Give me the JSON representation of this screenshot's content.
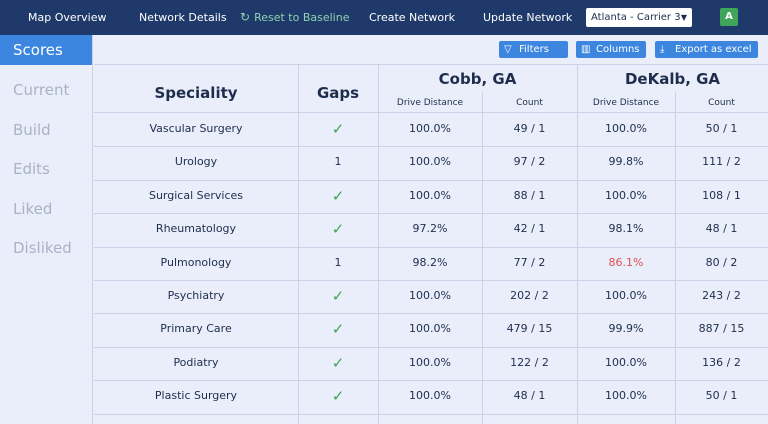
{
  "nav": {
    "items": [
      "Map Overview",
      "Network Details",
      "Reset to Baseline",
      "Create Network",
      "Update Network"
    ],
    "carrier_select": "Atlanta - Carrier 3",
    "avatar": "A"
  },
  "sidebar": {
    "items": [
      "Scores",
      "Current",
      "Build",
      "Edits",
      "Liked",
      "Disliked"
    ],
    "active": "Scores"
  },
  "toolbar": {
    "filters": "Filters",
    "columns": "Columns",
    "export": "Export as excel"
  },
  "table": {
    "headers": {
      "speciality": "Speciality",
      "gaps": "Gaps",
      "regions": [
        "Cobb, GA",
        "DeKalb, GA"
      ],
      "subcols": [
        "Drive Distance",
        "Count"
      ]
    },
    "rows": [
      {
        "speciality": "Vascular Surgery",
        "gaps": "",
        "gap_check": true,
        "cobb_drive": "100.0%",
        "cobb_count": "49 / 1",
        "dekalb_drive": "100.0%",
        "dekalb_count": "50 / 1"
      },
      {
        "speciality": "Urology",
        "gaps": "1",
        "gap_check": false,
        "cobb_drive": "100.0%",
        "cobb_count": "97 / 2",
        "dekalb_drive": "99.8%",
        "dekalb_count": "111 / 2"
      },
      {
        "speciality": "Surgical Services",
        "gaps": "",
        "gap_check": true,
        "cobb_drive": "100.0%",
        "cobb_count": "88 / 1",
        "dekalb_drive": "100.0%",
        "dekalb_count": "108 / 1"
      },
      {
        "speciality": "Rheumatology",
        "gaps": "",
        "gap_check": true,
        "cobb_drive": "97.2%",
        "cobb_count": "42 / 1",
        "dekalb_drive": "98.1%",
        "dekalb_count": "48 / 1"
      },
      {
        "speciality": "Pulmonology",
        "gaps": "1",
        "gap_check": false,
        "cobb_drive": "98.2%",
        "cobb_count": "77 / 2",
        "dekalb_drive": "86.1%",
        "dekalb_count": "80 / 2",
        "dekalb_drive_warn": true
      },
      {
        "speciality": "Psychiatry",
        "gaps": "",
        "gap_check": true,
        "cobb_drive": "100.0%",
        "cobb_count": "202 / 2",
        "dekalb_drive": "100.0%",
        "dekalb_count": "243 / 2"
      },
      {
        "speciality": "Primary Care",
        "gaps": "",
        "gap_check": true,
        "cobb_drive": "100.0%",
        "cobb_count": "479 / 15",
        "dekalb_drive": "99.9%",
        "dekalb_count": "887 / 15"
      },
      {
        "speciality": "Podiatry",
        "gaps": "",
        "gap_check": true,
        "cobb_drive": "100.0%",
        "cobb_count": "122 / 2",
        "dekalb_drive": "100.0%",
        "dekalb_count": "136 / 2"
      },
      {
        "speciality": "Plastic Surgery",
        "gaps": "",
        "gap_check": true,
        "cobb_drive": "100.0%",
        "cobb_count": "48 / 1",
        "dekalb_drive": "100.0%",
        "dekalb_count": "50 / 1"
      }
    ]
  },
  "colors": {
    "nav_bg": "#1f3a6a",
    "accent": "#3d86e0",
    "check": "#3ea55b",
    "warn": "#e05050"
  }
}
